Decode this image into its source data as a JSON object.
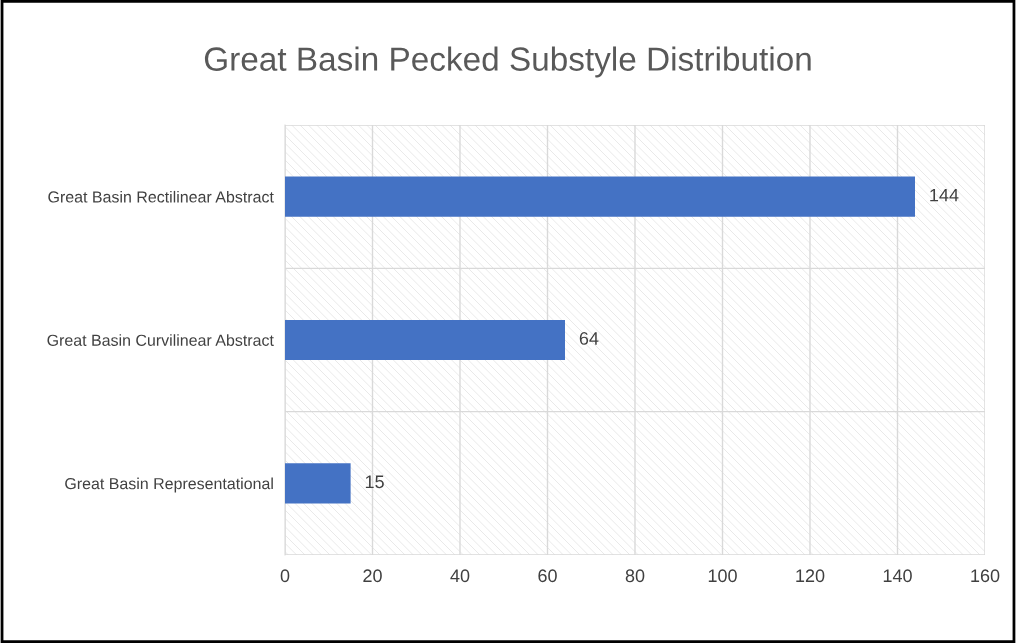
{
  "chart_data": {
    "type": "bar",
    "orientation": "horizontal",
    "title": "Great Basin Pecked Substyle Distribution",
    "categories": [
      "Great Basin Rectilinear Abstract",
      "Great Basin Curvilinear Abstract",
      "Great Basin Representational"
    ],
    "values": [
      144,
      64,
      15
    ],
    "color": "#4472c4",
    "xlim": [
      0,
      160
    ],
    "xticks": [
      0,
      20,
      40,
      60,
      80,
      100,
      120,
      140,
      160
    ],
    "grid": true,
    "data_labels": true
  }
}
